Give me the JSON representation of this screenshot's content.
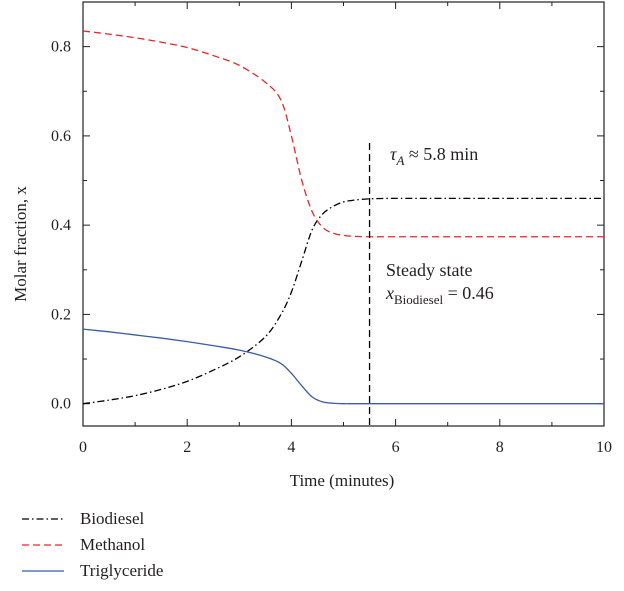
{
  "chart_data": {
    "type": "line",
    "xlabel": "Time (minutes)",
    "ylabel": "Molar fraction, x",
    "xlim": [
      0,
      10
    ],
    "ylim": [
      -0.05,
      0.9
    ],
    "xticks": [
      0,
      2,
      4,
      6,
      8,
      10
    ],
    "yticks": [
      0.0,
      0.2,
      0.4,
      0.6,
      0.8
    ],
    "xtick_labels": [
      "0",
      "2",
      "4",
      "6",
      "8",
      "10"
    ],
    "ytick_labels": [
      "0.0",
      "0.2",
      "0.4",
      "0.6",
      "0.8"
    ],
    "grid": false,
    "legend_position": "bottom-left",
    "series": [
      {
        "name": "Biodiesel",
        "color": "#000000",
        "style": "dash-dot",
        "x": [
          0,
          0.5,
          1,
          1.5,
          2,
          2.5,
          3,
          3.5,
          3.8,
          4,
          4.2,
          4.4,
          4.6,
          4.8,
          5,
          5.2,
          5.5,
          6,
          7,
          8,
          9,
          10
        ],
        "y": [
          0.0,
          0.008,
          0.018,
          0.032,
          0.05,
          0.075,
          0.105,
          0.15,
          0.2,
          0.25,
          0.32,
          0.39,
          0.425,
          0.442,
          0.452,
          0.456,
          0.459,
          0.46,
          0.46,
          0.46,
          0.46,
          0.46
        ]
      },
      {
        "name": "Methanol",
        "color": "#e8262a",
        "style": "dashed",
        "x": [
          0,
          0.5,
          1,
          1.5,
          2,
          2.5,
          3,
          3.5,
          3.8,
          4,
          4.2,
          4.4,
          4.6,
          4.8,
          5,
          5.2,
          5.5,
          6,
          7,
          8,
          9,
          10
        ],
        "y": [
          0.835,
          0.828,
          0.82,
          0.81,
          0.798,
          0.78,
          0.758,
          0.72,
          0.68,
          0.6,
          0.5,
          0.43,
          0.395,
          0.382,
          0.377,
          0.375,
          0.374,
          0.374,
          0.374,
          0.374,
          0.374,
          0.374
        ]
      },
      {
        "name": "Triglyceride",
        "color": "#3b5ba9",
        "style": "solid",
        "x": [
          0,
          0.5,
          1,
          1.5,
          2,
          2.5,
          3,
          3.5,
          3.8,
          4,
          4.2,
          4.4,
          4.6,
          4.8,
          5,
          5.2,
          5.5,
          6,
          7,
          8,
          9,
          10
        ],
        "y": [
          0.167,
          0.161,
          0.154,
          0.147,
          0.139,
          0.13,
          0.12,
          0.105,
          0.09,
          0.068,
          0.04,
          0.015,
          0.004,
          0.001,
          0.0,
          0.0,
          0.0,
          0.0,
          0.0,
          0.0,
          0.0,
          0.0
        ]
      }
    ],
    "annotations": {
      "vline_x": 5.5,
      "tau_symbol": "τ",
      "tau_sub": "A",
      "tau_value": " ≈ 5.8 min",
      "steady_title": "Steady state",
      "x_symbol": "x",
      "x_sub": "Biodiesel",
      "x_value": " = 0.46"
    }
  }
}
